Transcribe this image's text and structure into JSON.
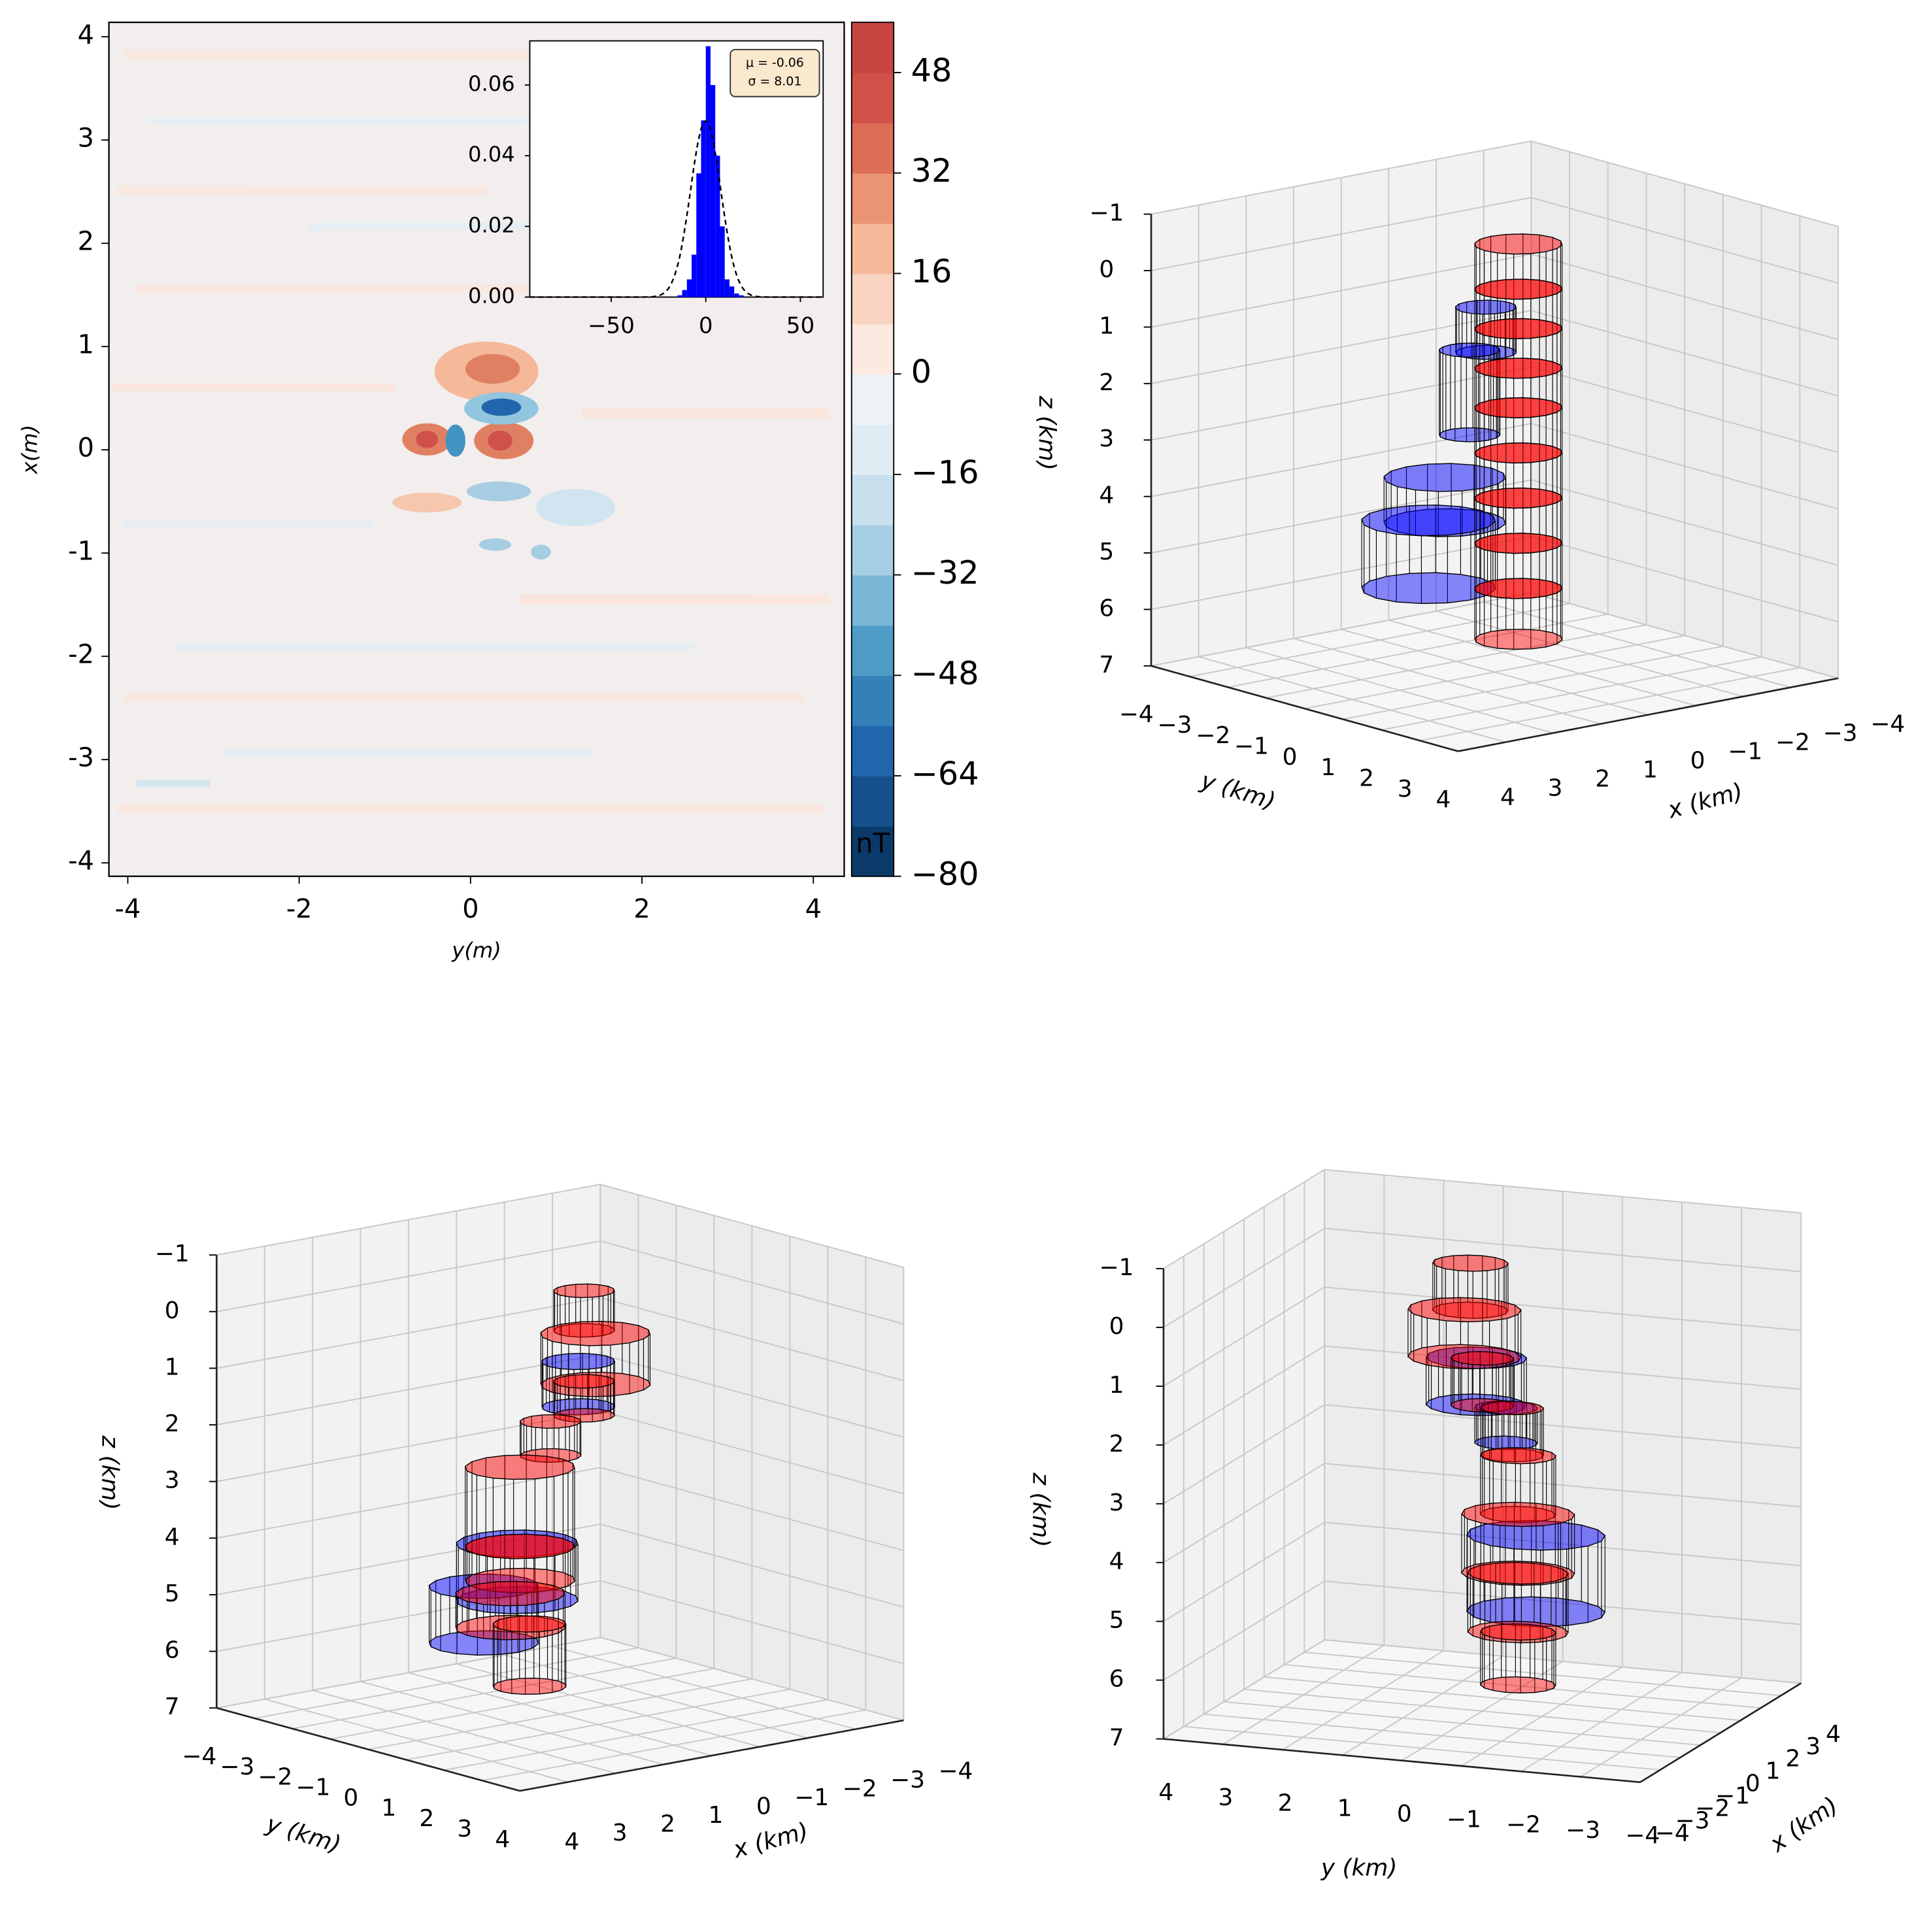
{
  "chart_data": [
    {
      "type": "contour",
      "xlabel": "y(m)",
      "ylabel": "x(m)",
      "xlim": [
        -4.22,
        4.36
      ],
      "ylim": [
        -4.13,
        4.14
      ],
      "xticks": [
        -4,
        -2,
        0,
        2,
        4
      ],
      "yticks": [
        -4,
        -3,
        -2,
        -1,
        0,
        1,
        2,
        3,
        4
      ],
      "colorbar": {
        "label": "nT",
        "clim": [
          -80,
          56
        ],
        "ticks": [
          {
            "value": -80,
            "label": "−80"
          },
          {
            "value": -64,
            "label": "−64"
          },
          {
            "value": -48,
            "label": "−48"
          },
          {
            "value": -32,
            "label": "−32"
          },
          {
            "value": -16,
            "label": "−16"
          },
          0,
          16,
          32,
          48
        ],
        "colors": [
          "#0b3a6a",
          "#16508c",
          "#2166ac",
          "#3480b9",
          "#4f9bc7",
          "#7ab6d6",
          "#a5cee3",
          "#c8e0ed",
          "#dfecf4",
          "#eef3f6",
          "#fce9e0",
          "#f9d4c0",
          "#f5b899",
          "#ea9375",
          "#dc6e57",
          "#cf5148",
          "#c84440"
        ]
      }
    },
    {
      "type": "histogram",
      "color": "#0000ff",
      "xlim": [
        -93,
        62
      ],
      "ylim": [
        0,
        0.0725
      ],
      "bins": [
        -15,
        -12.5,
        -10,
        -7.5,
        -5,
        -2.5,
        0,
        2.5,
        5,
        7.5,
        10,
        12.5,
        15,
        17.5,
        20
      ],
      "values": [
        0.0005,
        0.002,
        0.005,
        0.012,
        0.035,
        0.05,
        0.071,
        0.06,
        0.04,
        0.02,
        0.005,
        0.003,
        0.001,
        0.0005
      ],
      "xticks": [
        {
          "value": -50,
          "label": "−50"
        },
        0,
        50
      ],
      "yticks": [
        {
          "value": 0,
          "label": "0.00"
        },
        {
          "value": 0.02,
          "label": "0.02"
        },
        {
          "value": 0.04,
          "label": "0.04"
        },
        {
          "value": 0.06,
          "label": "0.06"
        }
      ],
      "fit": {
        "mu": -0.06,
        "sigma": 8.01,
        "mu_label": "μ = -0.06",
        "sigma_label": "σ = 8.01"
      }
    },
    {
      "type": "3d",
      "xlabel": "x (km)",
      "ylabel": "y (km)",
      "zlabel": "z (km)",
      "xlim": [
        -4,
        4
      ],
      "ylim": [
        -4,
        4
      ],
      "zlim": [
        -1,
        7
      ],
      "xticks": [
        {
          "value": -4,
          "label": "−4"
        },
        {
          "value": -3,
          "label": "−3"
        },
        {
          "value": -2,
          "label": "−2"
        },
        {
          "value": -1,
          "label": "−1"
        },
        0,
        1,
        2,
        3,
        4
      ],
      "yticks": [
        {
          "value": -4,
          "label": "−4"
        },
        {
          "value": -3,
          "label": "−3"
        },
        {
          "value": -2,
          "label": "−2"
        },
        {
          "value": -1,
          "label": "−1"
        },
        0,
        1,
        2,
        3,
        4
      ],
      "zticks": [
        {
          "value": -1,
          "label": "−1"
        },
        0,
        1,
        2,
        3,
        4,
        5,
        6,
        7
      ],
      "series": [
        {
          "color": "#0000ff",
          "bodies": [
            {
              "x": -0.3,
              "y": -0.6,
              "z": [
                0.7,
                1.5
              ],
              "r": 0.5
            },
            {
              "x": -0.2,
              "y": -0.9,
              "z": [
                1.5,
                3.0
              ],
              "r": 0.5
            },
            {
              "x": 0,
              "y": -1.3,
              "z": [
                3.8,
                4.6
              ],
              "r": 1.0
            },
            {
              "x": 0.1,
              "y": -1.6,
              "z": [
                4.6,
                5.8
              ],
              "r": 1.1
            }
          ]
        },
        {
          "color": "#ff0000",
          "bodies": [
            {
              "x": -0.5,
              "y": 0,
              "z": [
                -0.5,
                0.3
              ],
              "r": 0.72
            },
            {
              "x": -0.5,
              "y": 0,
              "z": [
                0.3,
                1.0
              ],
              "r": 0.72
            },
            {
              "x": -0.5,
              "y": 0,
              "z": [
                1.0,
                1.7
              ],
              "r": 0.72
            },
            {
              "x": -0.5,
              "y": 0,
              "z": [
                1.7,
                2.4
              ],
              "r": 0.72
            },
            {
              "x": -0.5,
              "y": 0,
              "z": [
                2.4,
                3.2
              ],
              "r": 0.72
            },
            {
              "x": -0.5,
              "y": 0,
              "z": [
                3.2,
                4.0
              ],
              "r": 0.72
            },
            {
              "x": -0.5,
              "y": 0,
              "z": [
                4.0,
                4.8
              ],
              "r": 0.72
            },
            {
              "x": -0.5,
              "y": 0,
              "z": [
                4.8,
                5.6
              ],
              "r": 0.72
            },
            {
              "x": -0.5,
              "y": 0,
              "z": [
                5.6,
                6.5
              ],
              "r": 0.72
            }
          ]
        }
      ]
    },
    {
      "type": "3d",
      "xlabel": "x (km)",
      "ylabel": "y (km)",
      "zlabel": "z (km)",
      "xlim": [
        -4,
        4
      ],
      "ylim": [
        -4,
        4
      ],
      "zlim": [
        -1,
        7
      ],
      "xticks": [
        {
          "value": -4,
          "label": "−4"
        },
        {
          "value": -3,
          "label": "−3"
        },
        {
          "value": -2,
          "label": "−2"
        },
        {
          "value": -1,
          "label": "−1"
        },
        0,
        1,
        2,
        3,
        4
      ],
      "yticks": [
        {
          "value": -4,
          "label": "−4"
        },
        {
          "value": -3,
          "label": "−3"
        },
        {
          "value": -2,
          "label": "−2"
        },
        {
          "value": -1,
          "label": "−1"
        },
        0,
        1,
        2,
        3,
        4
      ],
      "zticks": [
        {
          "value": -1,
          "label": "−1"
        },
        0,
        1,
        2,
        3,
        4,
        5,
        6,
        7
      ],
      "series": [
        {
          "color": "#0000ff",
          "bodies": [
            {
              "x": -0.3,
              "y": 0.1,
              "z": [
                0.8,
                1.6
              ],
              "r": 0.6
            },
            {
              "x": 0.5,
              "y": -0.5,
              "z": [
                4.0,
                5.0
              ],
              "r": 1.0
            },
            {
              "x": 0.8,
              "y": -1.0,
              "z": [
                4.8,
                5.8
              ],
              "r": 0.9
            }
          ]
        },
        {
          "color": "#ff0000",
          "bodies": [
            {
              "x": -0.5,
              "y": 0,
              "z": [
                -0.4,
                0.3
              ],
              "r": 0.5
            },
            {
              "x": -0.5,
              "y": 0.3,
              "z": [
                0.3,
                1.2
              ],
              "r": 0.9
            },
            {
              "x": -0.5,
              "y": 0,
              "z": [
                1.2,
                1.8
              ],
              "r": 0.5
            },
            {
              "x": 0.2,
              "y": 0,
              "z": [
                1.8,
                2.4
              ],
              "r": 0.5
            },
            {
              "x": 0.6,
              "y": -0.3,
              "z": [
                2.6,
                4.0
              ],
              "r": 0.9
            },
            {
              "x": 0.6,
              "y": -0.3,
              "z": [
                4.0,
                4.6
              ],
              "r": 0.9
            },
            {
              "x": 0.8,
              "y": -0.3,
              "z": [
                4.8,
                5.4
              ],
              "r": 0.9
            },
            {
              "x": 0.4,
              "y": -0.3,
              "z": [
                5.4,
                6.5
              ],
              "r": 0.6
            }
          ]
        }
      ]
    },
    {
      "type": "3d",
      "xlabel": "x (km)",
      "ylabel": "y (km)",
      "zlabel": "z (km)",
      "xlim": [
        -4,
        4
      ],
      "ylim": [
        -4,
        4
      ],
      "zlim": [
        -1,
        7
      ],
      "xticks": [
        {
          "value": -4,
          "label": "−4"
        },
        {
          "value": -3,
          "label": "−3"
        },
        {
          "value": -2,
          "label": "−2"
        },
        {
          "value": -1,
          "label": "−1"
        },
        0,
        1,
        2,
        3,
        4
      ],
      "yticks": [
        {
          "value": -4,
          "label": "−4"
        },
        {
          "value": -3,
          "label": "−3"
        },
        {
          "value": -2,
          "label": "−2"
        },
        {
          "value": -1,
          "label": "−1"
        },
        0,
        1,
        2,
        3,
        4
      ],
      "zticks": [
        {
          "value": -1,
          "label": "−1"
        },
        0,
        1,
        2,
        3,
        4,
        5,
        6,
        7
      ],
      "series": [
        {
          "color": "#0000ff",
          "bodies": [
            {
              "x": 0,
              "y": 0.1,
              "z": [
                1.0,
                1.8
              ],
              "r": 0.8
            },
            {
              "x": 0,
              "y": -0.4,
              "z": [
                1.8,
                2.4
              ],
              "r": 0.5
            },
            {
              "x": 0.3,
              "y": -0.8,
              "z": [
                4.0,
                5.3
              ],
              "r": 1.1
            }
          ]
        },
        {
          "color": "#ff0000",
          "bodies": [
            {
              "x": 0,
              "y": 0.2,
              "z": [
                -0.6,
                0.2
              ],
              "r": 0.6
            },
            {
              "x": 0,
              "y": 0.3,
              "z": [
                0.2,
                1.0
              ],
              "r": 0.9
            },
            {
              "x": 0,
              "y": 0,
              "z": [
                1.0,
                1.8
              ],
              "r": 0.5
            },
            {
              "x": 0,
              "y": -0.5,
              "z": [
                1.8,
                2.6
              ],
              "r": 0.5
            },
            {
              "x": 0,
              "y": -0.6,
              "z": [
                2.6,
                3.6
              ],
              "r": 0.6
            },
            {
              "x": 0,
              "y": -0.6,
              "z": [
                3.6,
                4.6
              ],
              "r": 0.9
            },
            {
              "x": 0,
              "y": -0.6,
              "z": [
                4.6,
                5.6
              ],
              "r": 0.8
            },
            {
              "x": 0,
              "y": -0.6,
              "z": [
                5.6,
                6.5
              ],
              "r": 0.6
            }
          ]
        }
      ]
    }
  ]
}
